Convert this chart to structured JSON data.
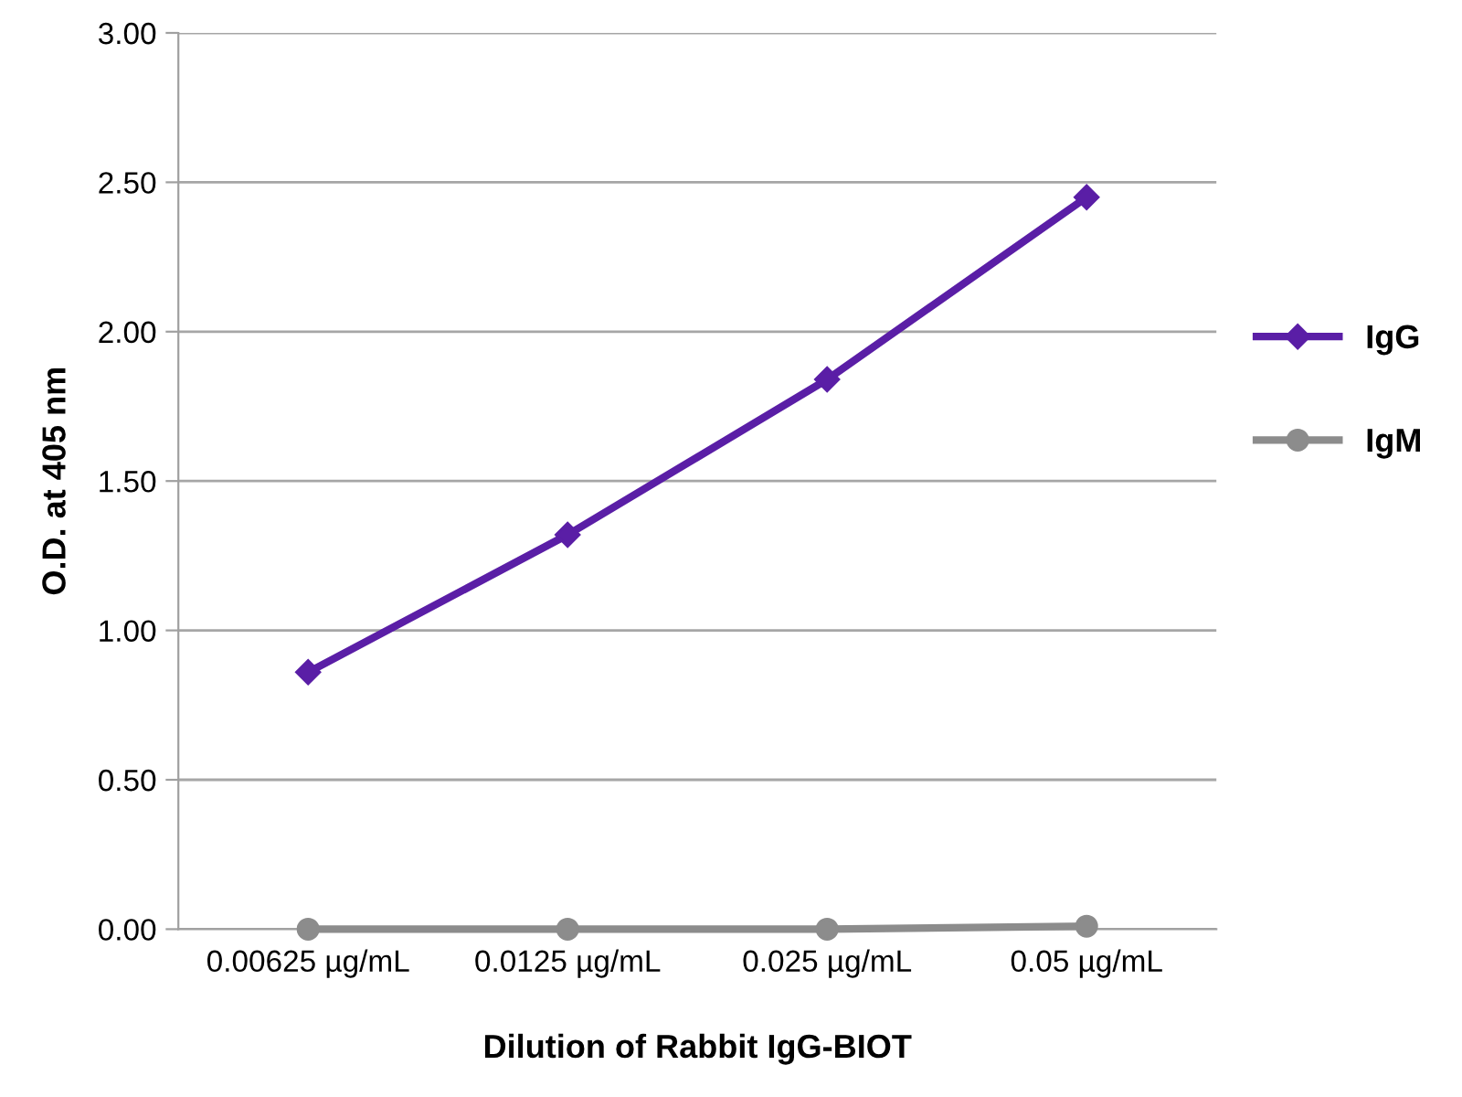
{
  "chart_data": {
    "type": "line",
    "xlabel": "Dilution of Rabbit IgG-BIOT",
    "ylabel": "O.D. at 405 nm",
    "categories": [
      "0.00625 µg/mL",
      "0.0125 µg/mL",
      "0.025 µg/mL",
      "0.05 µg/mL"
    ],
    "series": [
      {
        "name": "IgG",
        "color": "#5a1ea6",
        "marker": "diamond",
        "values": [
          0.86,
          1.32,
          1.84,
          2.45
        ]
      },
      {
        "name": "IgM",
        "color": "#8c8c8c",
        "marker": "circle",
        "values": [
          0.0,
          0.0,
          0.0,
          0.01
        ]
      }
    ],
    "ylim": [
      0,
      3
    ],
    "yticks": [
      {
        "value": 0,
        "label": "0.00"
      },
      {
        "value": 0.5,
        "label": "0.50"
      },
      {
        "value": 1,
        "label": "1.00"
      },
      {
        "value": 1.5,
        "label": "1.50"
      },
      {
        "value": 2,
        "label": "2.00"
      },
      {
        "value": 2.5,
        "label": "2.50"
      },
      {
        "value": 3,
        "label": "3.00"
      }
    ],
    "grid": "y",
    "legend": "right"
  }
}
